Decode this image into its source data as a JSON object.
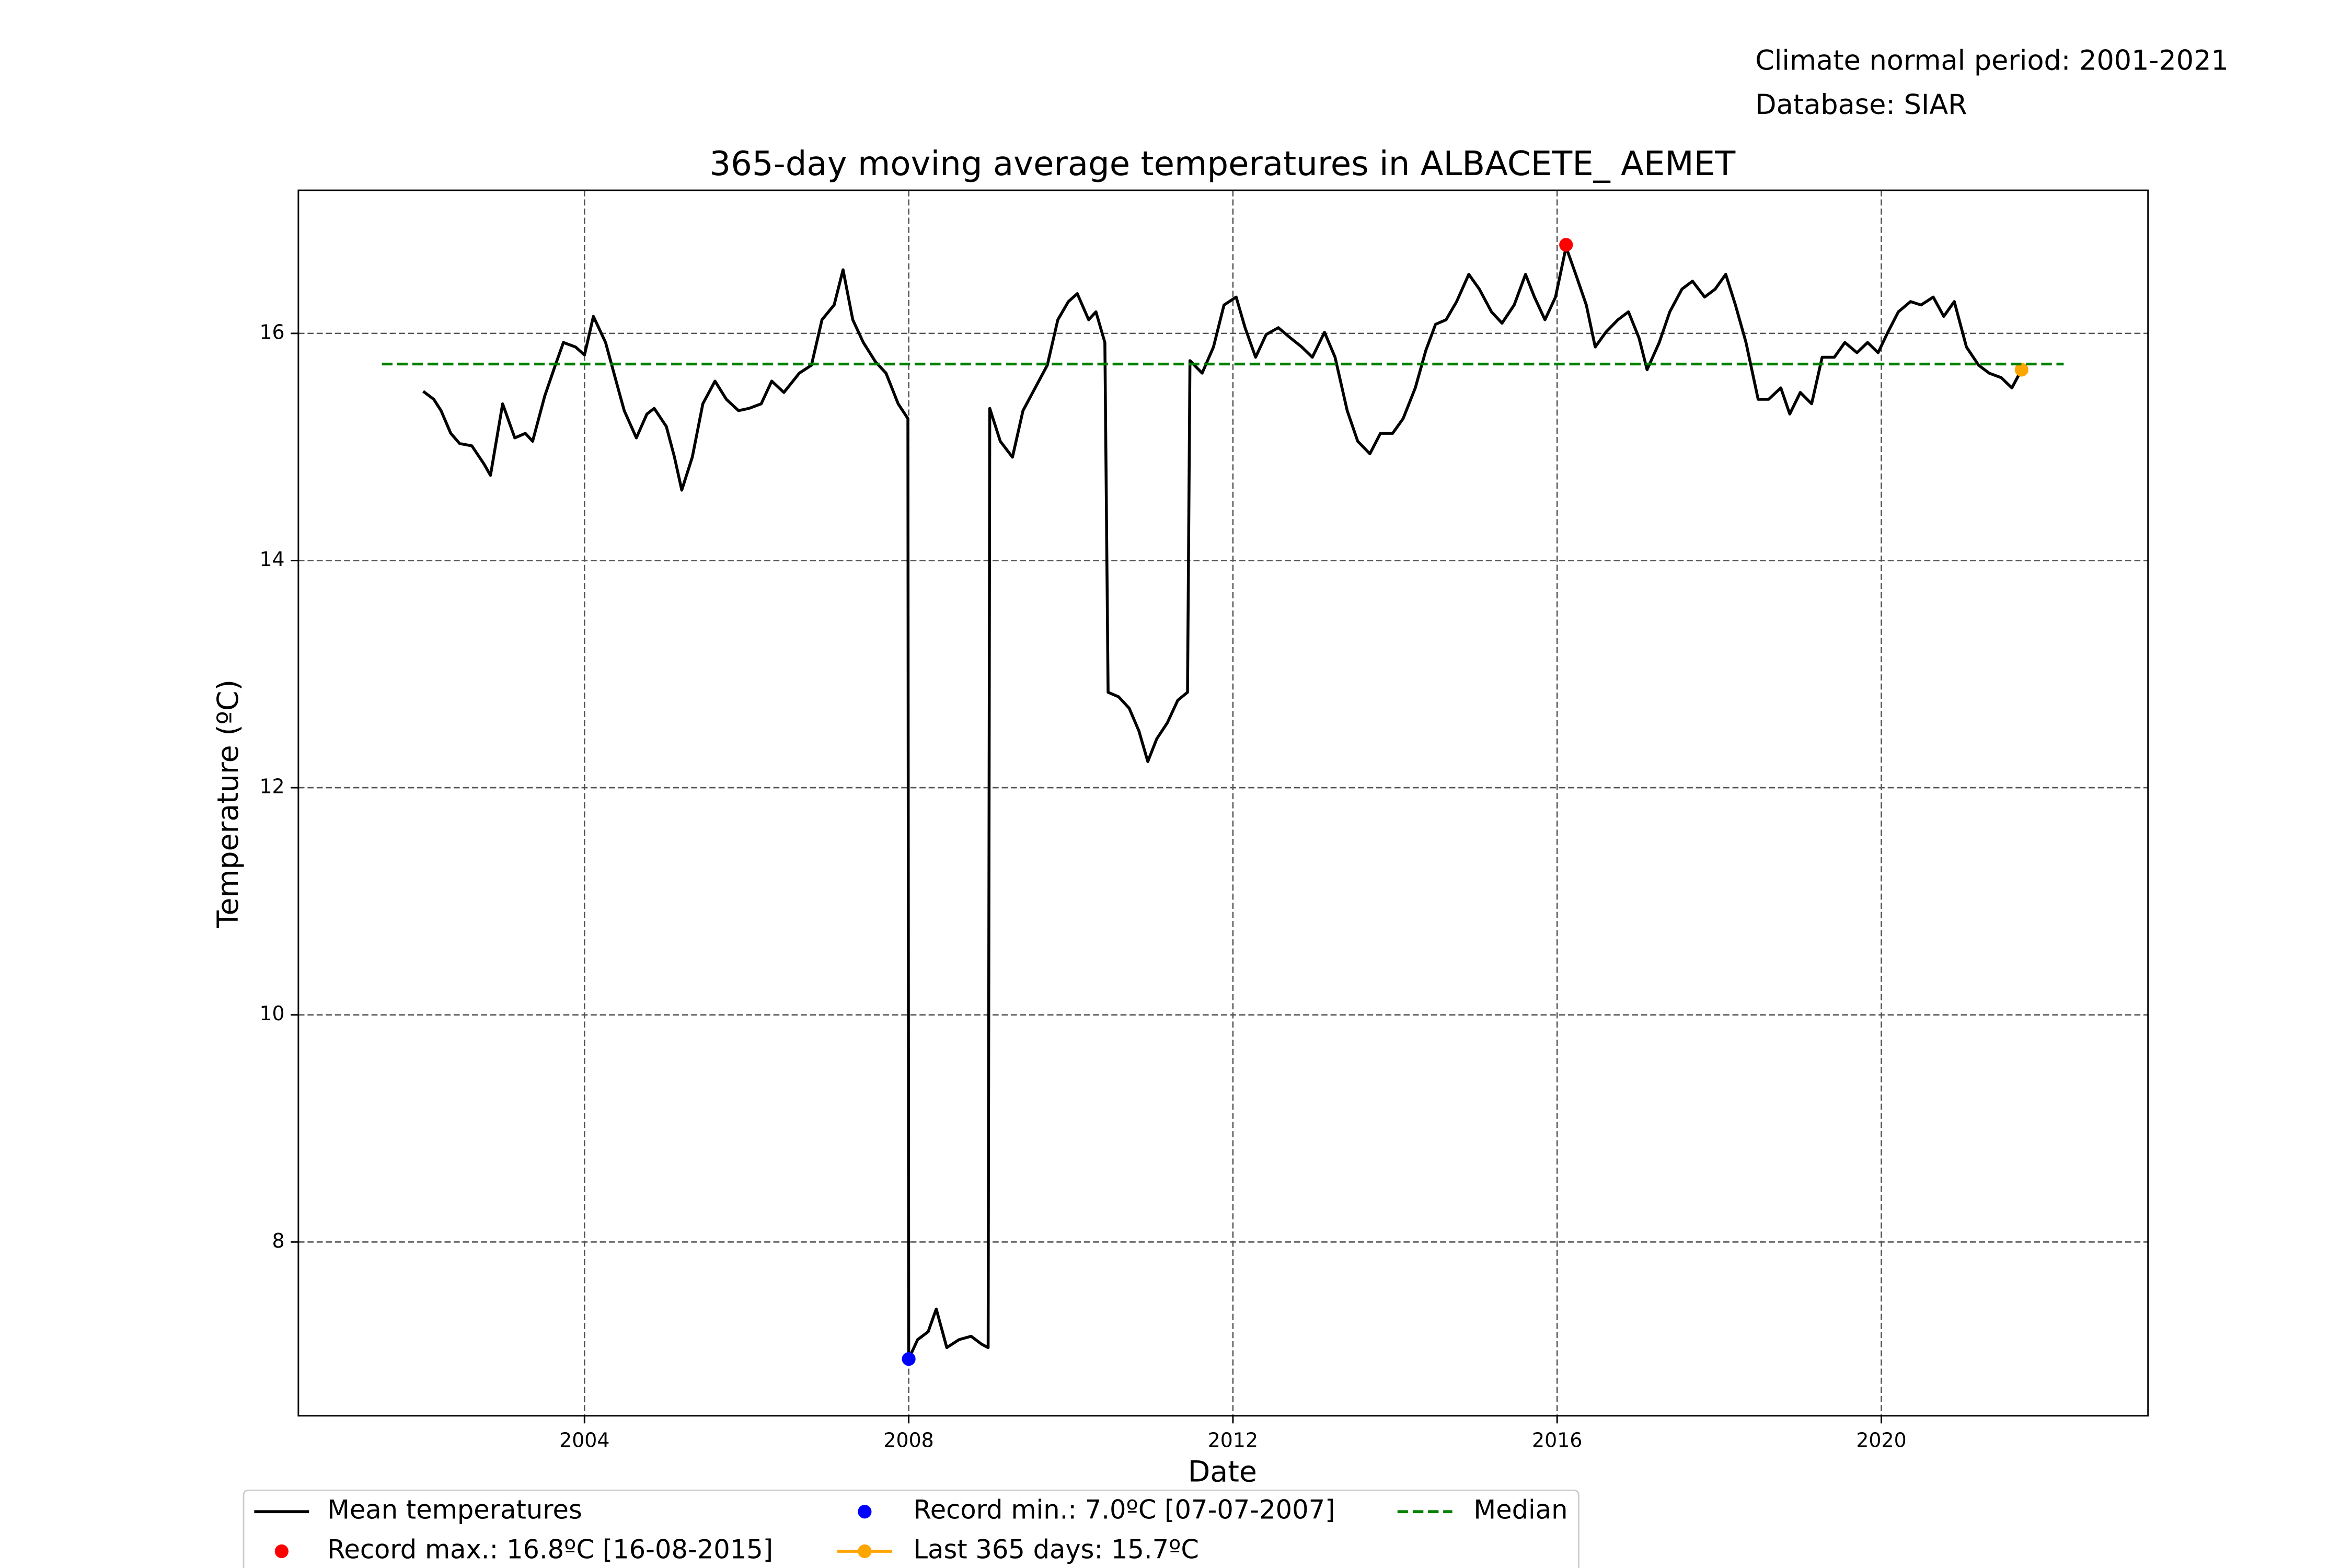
{
  "chart_data": {
    "type": "line",
    "title": "365-day moving average temperatures in ALBACETE_ AEMET",
    "annotations": [
      "Climate normal period: 2001-2021",
      "Database: SIAR"
    ],
    "xlabel": "Date",
    "ylabel": "Temperature (ºC)",
    "xlim": [
      2000.47,
      2023.29
    ],
    "xticks": [
      2004,
      2008,
      2012,
      2016,
      2020
    ],
    "ylim": [
      6.47,
      17.26
    ],
    "yticks": [
      8,
      10,
      12,
      14,
      16
    ],
    "grid": true,
    "legend": "below",
    "series": [
      {
        "name": "Mean temperatures",
        "color": "#000000",
        "mode": "line",
        "x": [
          2002.01,
          2002.14,
          2002.23,
          2002.35,
          2002.46,
          2002.61,
          2002.76,
          2002.84,
          2002.99,
          2003.14,
          2003.27,
          2003.36,
          2003.51,
          2003.64,
          2003.74,
          2003.89,
          2004.0,
          2004.11,
          2004.26,
          2004.39,
          2004.49,
          2004.64,
          2004.77,
          2004.86,
          2005.01,
          2005.11,
          2005.2,
          2005.33,
          2005.46,
          2005.61,
          2005.75,
          2005.9,
          2006.03,
          2006.18,
          2006.31,
          2006.46,
          2006.65,
          2006.8,
          2006.93,
          2007.08,
          2007.19,
          2007.31,
          2007.44,
          2007.59,
          2007.72,
          2007.87,
          2007.99,
          2008.0,
          2008.11,
          2008.24,
          2008.34,
          2008.47,
          2008.62,
          2008.77,
          2008.9,
          2008.98,
          2009.0,
          2009.13,
          2009.28,
          2009.41,
          2009.56,
          2009.71,
          2009.84,
          2009.97,
          2010.08,
          2010.22,
          2010.31,
          2010.42,
          2010.46,
          2010.59,
          2010.72,
          2010.84,
          2010.95,
          2011.06,
          2011.19,
          2011.32,
          2011.44,
          2011.47,
          2011.62,
          2011.76,
          2011.89,
          2012.04,
          2012.15,
          2012.28,
          2012.41,
          2012.56,
          2012.71,
          2012.85,
          2012.98,
          2013.13,
          2013.26,
          2013.41,
          2013.54,
          2013.69,
          2013.82,
          2013.97,
          2014.1,
          2014.25,
          2014.38,
          2014.5,
          2014.63,
          2014.76,
          2014.91,
          2015.04,
          2015.19,
          2015.32,
          2015.47,
          2015.61,
          2015.72,
          2015.85,
          2015.98,
          2016.11,
          2016.23,
          2016.36,
          2016.47,
          2016.6,
          2016.75,
          2016.88,
          2017.01,
          2017.11,
          2017.26,
          2017.39,
          2017.54,
          2017.67,
          2017.82,
          2017.95,
          2018.08,
          2018.2,
          2018.33,
          2018.48,
          2018.61,
          2018.76,
          2018.87,
          2019.0,
          2019.14,
          2019.27,
          2019.42,
          2019.55,
          2019.7,
          2019.83,
          2019.96,
          2020.08,
          2020.21,
          2020.36,
          2020.49,
          2020.64,
          2020.77,
          2020.9,
          2021.05,
          2021.2,
          2021.33,
          2021.48,
          2021.61,
          2021.73
        ],
        "values": [
          15.49,
          15.42,
          15.32,
          15.12,
          15.03,
          15.01,
          14.85,
          14.75,
          15.38,
          15.08,
          15.12,
          15.05,
          15.45,
          15.72,
          15.92,
          15.88,
          15.81,
          16.15,
          15.92,
          15.58,
          15.32,
          15.08,
          15.29,
          15.34,
          15.18,
          14.91,
          14.62,
          14.91,
          15.38,
          15.58,
          15.42,
          15.32,
          15.34,
          15.38,
          15.58,
          15.48,
          15.65,
          15.72,
          16.12,
          16.25,
          16.56,
          16.12,
          15.92,
          15.75,
          15.65,
          15.38,
          15.25,
          6.97,
          7.14,
          7.21,
          7.41,
          7.07,
          7.14,
          7.17,
          7.1,
          7.07,
          15.34,
          15.05,
          14.91,
          15.32,
          15.52,
          15.72,
          16.12,
          16.28,
          16.35,
          16.12,
          16.19,
          15.92,
          12.84,
          12.8,
          12.7,
          12.5,
          12.23,
          12.43,
          12.57,
          12.77,
          12.84,
          15.76,
          15.65,
          15.88,
          16.25,
          16.32,
          16.05,
          15.79,
          15.99,
          16.05,
          15.96,
          15.88,
          15.79,
          16.01,
          15.79,
          15.32,
          15.05,
          14.94,
          15.12,
          15.12,
          15.25,
          15.52,
          15.85,
          16.08,
          16.12,
          16.28,
          16.52,
          16.39,
          16.19,
          16.09,
          16.25,
          16.52,
          16.32,
          16.12,
          16.32,
          16.76,
          16.52,
          16.25,
          15.88,
          16.01,
          16.12,
          16.19,
          15.96,
          15.68,
          15.92,
          16.19,
          16.39,
          16.46,
          16.32,
          16.39,
          16.52,
          16.25,
          15.92,
          15.42,
          15.42,
          15.52,
          15.29,
          15.48,
          15.38,
          15.79,
          15.79,
          15.92,
          15.83,
          15.92,
          15.83,
          16.01,
          16.19,
          16.28,
          16.25,
          16.32,
          16.15,
          16.28,
          15.88,
          15.72,
          15.65,
          15.61,
          15.52,
          15.68
        ]
      },
      {
        "name": "Record max.: 16.8ºC [16-08-2015]",
        "color": "#ff0000",
        "mode": "marker",
        "x": [
          2016.11
        ],
        "values": [
          16.78
        ]
      },
      {
        "name": "Record min.: 7.0ºC [07-07-2007]",
        "color": "#0000ff",
        "mode": "marker",
        "x": [
          2008.0
        ],
        "values": [
          6.97
        ]
      },
      {
        "name": "Last 365 days: 15.7ºC",
        "color": "#ffa500",
        "mode": "line-marker",
        "x": [
          2021.73
        ],
        "values": [
          15.68
        ]
      },
      {
        "name": "Median",
        "color": "#008000",
        "mode": "dashed",
        "x": [
          2001.5,
          2022.25
        ],
        "values": [
          15.73,
          15.73
        ]
      }
    ]
  }
}
